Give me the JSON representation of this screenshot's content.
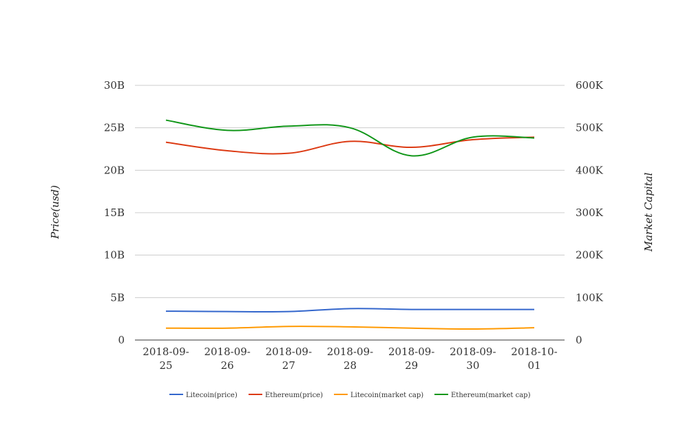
{
  "chart_data": {
    "type": "line",
    "title": "",
    "x": [
      "2018-09-25",
      "2018-09-26",
      "2018-09-27",
      "2018-09-28",
      "2018-09-29",
      "2018-09-30",
      "2018-10-01"
    ],
    "x_tick_labels": [
      [
        "2018-09-",
        "25"
      ],
      [
        "2018-09-",
        "26"
      ],
      [
        "2018-09-",
        "27"
      ],
      [
        "2018-09-",
        "28"
      ],
      [
        "2018-09-",
        "29"
      ],
      [
        "2018-09-",
        "30"
      ],
      [
        "2018-10-",
        "01"
      ]
    ],
    "ylabel": "Price(usd)",
    "y2label": "Market Capital",
    "ylim": [
      0,
      30000000000
    ],
    "y2lim": [
      0,
      600000
    ],
    "y_ticks": [
      0,
      5000000000,
      10000000000,
      15000000000,
      20000000000,
      25000000000,
      30000000000
    ],
    "y_tick_labels": [
      "0",
      "5B",
      "10B",
      "15B",
      "20B",
      "25B",
      "30B"
    ],
    "y2_ticks": [
      0,
      100000,
      200000,
      300000,
      400000,
      500000,
      600000
    ],
    "y2_tick_labels": [
      "0",
      "100K",
      "200K",
      "300K",
      "400K",
      "500K",
      "600K"
    ],
    "grid": true,
    "legend_position": "bottom",
    "series": [
      {
        "name": "Litecoin(price)",
        "axis": "left",
        "color": "#3366cc",
        "values": [
          3400000000,
          3350000000,
          3350000000,
          3700000000,
          3600000000,
          3600000000,
          3600000000
        ]
      },
      {
        "name": "Ethereum(price)",
        "axis": "left",
        "color": "#dc3912",
        "values": [
          23300000000,
          22300000000,
          22000000000,
          23400000000,
          22700000000,
          23600000000,
          23900000000
        ]
      },
      {
        "name": "Litecoin(market cap)",
        "axis": "left",
        "color": "#ff9900",
        "values": [
          1400000000,
          1400000000,
          1600000000,
          1550000000,
          1400000000,
          1300000000,
          1450000000
        ]
      },
      {
        "name": "Ethereum(market cap)",
        "axis": "left",
        "color": "#109618",
        "values": [
          25900000000,
          24700000000,
          25200000000,
          25000000000,
          21700000000,
          23900000000,
          23800000000
        ]
      }
    ]
  }
}
